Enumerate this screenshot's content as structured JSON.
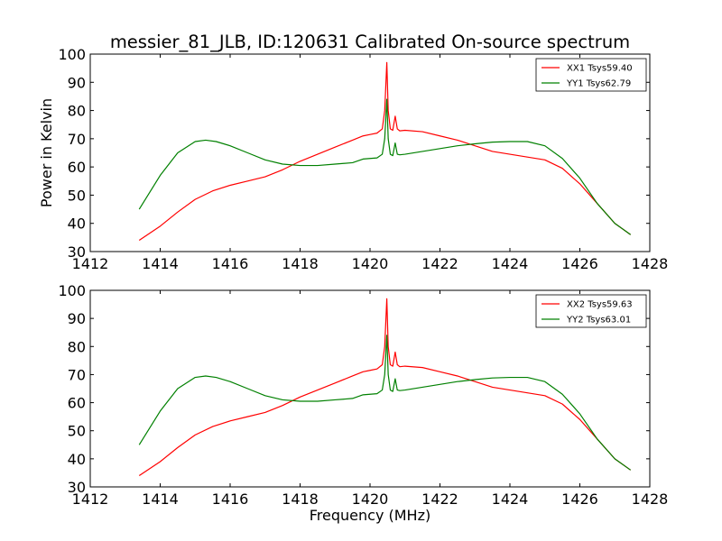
{
  "title": "messier_81_JLB, ID:120631 Calibrated On-source spectrum",
  "colors": {
    "xx": "#ff0000",
    "yy": "#008000"
  },
  "chart_data": [
    {
      "type": "line",
      "title": "messier_81_JLB, ID:120631 Calibrated On-source spectrum",
      "xlabel": "",
      "ylabel": "Power in Kelvin",
      "xlim": [
        1412,
        1428
      ],
      "ylim": [
        30,
        100
      ],
      "xticks": [
        "1412",
        "1414",
        "1416",
        "1418",
        "1420",
        "1422",
        "1424",
        "1426",
        "1428"
      ],
      "yticks": [
        "30",
        "40",
        "50",
        "60",
        "70",
        "80",
        "90",
        "100"
      ],
      "legend_position": "top-right",
      "series": [
        {
          "name": "XX1 Tsys59.40",
          "color": "#ff0000",
          "x": [
            1413.4,
            1414.0,
            1414.5,
            1415.0,
            1415.5,
            1416.0,
            1416.5,
            1417.0,
            1417.5,
            1418.0,
            1418.5,
            1419.0,
            1419.5,
            1419.8,
            1420.0,
            1420.2,
            1420.35,
            1420.42,
            1420.48,
            1420.52,
            1420.58,
            1420.65,
            1420.72,
            1420.78,
            1420.85,
            1421.0,
            1421.5,
            1422.0,
            1422.5,
            1423.0,
            1423.5,
            1424.0,
            1424.5,
            1425.0,
            1425.5,
            1426.0,
            1426.5,
            1427.0,
            1427.45
          ],
          "y": [
            34,
            39,
            44,
            48.5,
            51.5,
            53.5,
            55,
            56.5,
            59,
            62,
            64.5,
            67,
            69.5,
            71,
            71.5,
            72,
            73.5,
            80,
            97,
            80,
            73.5,
            73,
            78,
            73.5,
            72.8,
            73,
            72.5,
            71,
            69.5,
            67.5,
            65.5,
            64.5,
            63.5,
            62.5,
            59.5,
            54,
            47,
            40,
            36
          ]
        },
        {
          "name": "YY1 Tsys62.79",
          "color": "#008000",
          "x": [
            1413.4,
            1414.0,
            1414.5,
            1415.0,
            1415.3,
            1415.6,
            1416.0,
            1416.5,
            1417.0,
            1417.5,
            1418.0,
            1418.5,
            1419.0,
            1419.5,
            1419.8,
            1420.0,
            1420.2,
            1420.35,
            1420.42,
            1420.48,
            1420.52,
            1420.58,
            1420.65,
            1420.72,
            1420.78,
            1420.85,
            1421.0,
            1421.5,
            1422.0,
            1422.5,
            1423.0,
            1423.5,
            1424.0,
            1424.5,
            1425.0,
            1425.5,
            1426.0,
            1426.5,
            1427.0,
            1427.45
          ],
          "y": [
            45,
            57,
            65,
            69,
            69.5,
            69,
            67.5,
            65,
            62.5,
            61,
            60.5,
            60.5,
            61,
            61.5,
            62.8,
            63,
            63.2,
            64.5,
            70,
            84,
            70,
            64.5,
            64,
            68.5,
            64.5,
            64.3,
            64.5,
            65.5,
            66.5,
            67.5,
            68.2,
            68.8,
            69,
            69,
            67.5,
            63,
            56,
            47,
            40,
            36
          ]
        }
      ]
    },
    {
      "type": "line",
      "title": "",
      "xlabel": "Frequency (MHz)",
      "ylabel": "",
      "xlim": [
        1412,
        1428
      ],
      "ylim": [
        30,
        100
      ],
      "xticks": [
        "1412",
        "1414",
        "1416",
        "1418",
        "1420",
        "1422",
        "1424",
        "1426",
        "1428"
      ],
      "yticks": [
        "30",
        "40",
        "50",
        "60",
        "70",
        "80",
        "90",
        "100"
      ],
      "legend_position": "top-right",
      "series": [
        {
          "name": "XX2 Tsys59.63",
          "color": "#ff0000",
          "x": [
            1413.4,
            1414.0,
            1414.5,
            1415.0,
            1415.5,
            1416.0,
            1416.5,
            1417.0,
            1417.5,
            1418.0,
            1418.5,
            1419.0,
            1419.5,
            1419.8,
            1420.0,
            1420.2,
            1420.35,
            1420.42,
            1420.48,
            1420.52,
            1420.58,
            1420.65,
            1420.72,
            1420.78,
            1420.85,
            1421.0,
            1421.5,
            1422.0,
            1422.5,
            1423.0,
            1423.5,
            1424.0,
            1424.5,
            1425.0,
            1425.5,
            1426.0,
            1426.5,
            1427.0,
            1427.45
          ],
          "y": [
            34,
            39,
            44,
            48.5,
            51.5,
            53.5,
            55,
            56.5,
            59,
            62,
            64.5,
            67,
            69.5,
            71,
            71.5,
            72,
            73.5,
            80,
            97,
            80,
            73.5,
            73,
            78,
            73.5,
            72.8,
            73,
            72.5,
            71,
            69.5,
            67.5,
            65.5,
            64.5,
            63.5,
            62.5,
            59.5,
            54,
            47,
            40,
            36
          ]
        },
        {
          "name": "YY2 Tsys63.01",
          "color": "#008000",
          "x": [
            1413.4,
            1414.0,
            1414.5,
            1415.0,
            1415.3,
            1415.6,
            1416.0,
            1416.5,
            1417.0,
            1417.5,
            1418.0,
            1418.5,
            1419.0,
            1419.5,
            1419.8,
            1420.0,
            1420.2,
            1420.35,
            1420.42,
            1420.48,
            1420.52,
            1420.58,
            1420.65,
            1420.72,
            1420.78,
            1420.85,
            1421.0,
            1421.5,
            1422.0,
            1422.5,
            1423.0,
            1423.5,
            1424.0,
            1424.5,
            1425.0,
            1425.5,
            1426.0,
            1426.5,
            1427.0,
            1427.45
          ],
          "y": [
            45,
            57,
            65,
            69,
            69.5,
            69,
            67.5,
            65,
            62.5,
            61,
            60.5,
            60.5,
            61,
            61.5,
            62.8,
            63,
            63.2,
            64.5,
            70,
            84,
            70,
            64.5,
            64,
            68.5,
            64.5,
            64.3,
            64.5,
            65.5,
            66.5,
            67.5,
            68.2,
            68.8,
            69,
            69,
            67.5,
            63,
            56,
            47,
            40,
            36
          ]
        }
      ]
    }
  ]
}
